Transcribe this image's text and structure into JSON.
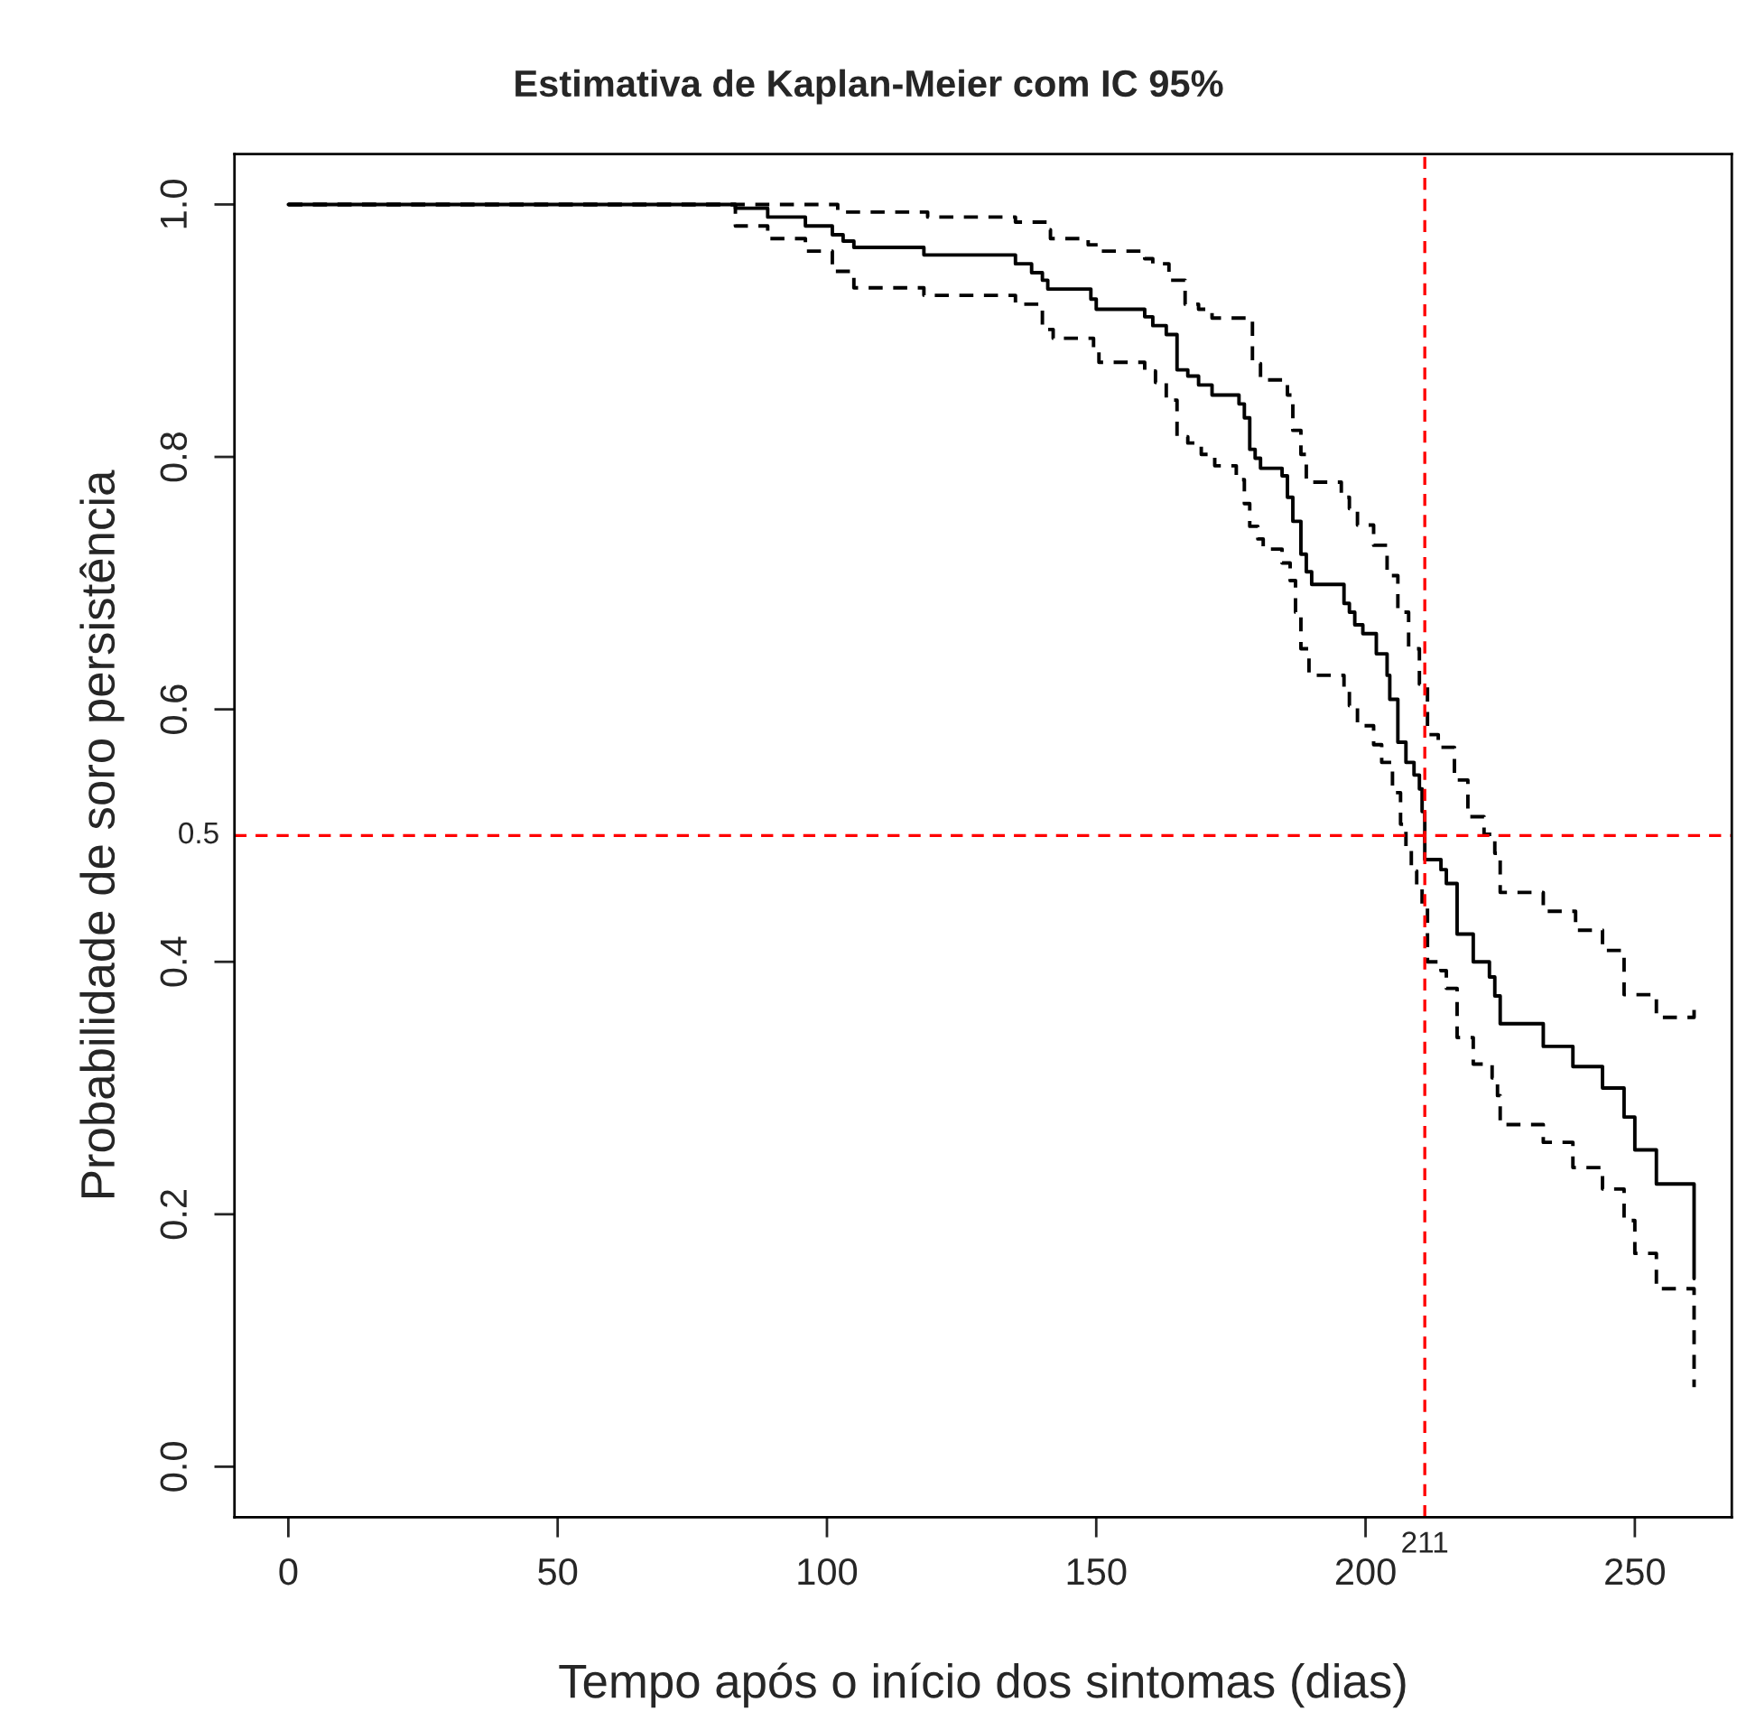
{
  "chart_data": {
    "type": "step",
    "title": "Estimativa de Kaplan-Meier com IC 95%",
    "xlabel": "Tempo após o início dos sintomas (dias)",
    "ylabel": "Probabilidade de soro persistência",
    "xlim": [
      -10,
      268
    ],
    "ylim": [
      -0.04,
      1.04
    ],
    "xticks": [
      0,
      50,
      100,
      150,
      200,
      250
    ],
    "yticks": [
      {
        "value": 0,
        "label": "0.0"
      },
      {
        "value": 0.2,
        "label": "0.2"
      },
      {
        "value": 0.4,
        "label": "0.4"
      },
      {
        "value": 0.6,
        "label": "0.6"
      },
      {
        "value": 0.8,
        "label": "0.8"
      },
      {
        "value": 1,
        "label": "1.0"
      }
    ],
    "grid": false,
    "legend": false,
    "marker": "none",
    "series": [
      {
        "color": "#000000",
        "line_style": "solid",
        "x": [
          0,
          83,
          89,
          96,
          101,
          103,
          105,
          118,
          135,
          138,
          140,
          141,
          149,
          150,
          159,
          160.5,
          163,
          165,
          167,
          169,
          171.5,
          176.5,
          177.5,
          178.5,
          179.5,
          180.5,
          184.5,
          185.5,
          186.5,
          188,
          189,
          190,
          196,
          197,
          198,
          199.5,
          202,
          204,
          204.5,
          206,
          207.5,
          209,
          210,
          210.5,
          211,
          214,
          215,
          217,
          220,
          223,
          224,
          225,
          233,
          238.5,
          244,
          248,
          250,
          254,
          261
        ],
        "values": [
          1.0,
          0.997,
          0.99,
          0.983,
          0.976,
          0.971,
          0.966,
          0.96,
          0.953,
          0.946,
          0.94,
          0.933,
          0.925,
          0.917,
          0.911,
          0.904,
          0.897,
          0.869,
          0.864,
          0.857,
          0.849,
          0.842,
          0.831,
          0.806,
          0.799,
          0.791,
          0.785,
          0.768,
          0.749,
          0.723,
          0.709,
          0.699,
          0.684,
          0.677,
          0.667,
          0.66,
          0.644,
          0.627,
          0.608,
          0.574,
          0.558,
          0.548,
          0.537,
          0.519,
          0.481,
          0.473,
          0.462,
          0.422,
          0.4,
          0.388,
          0.373,
          0.351,
          0.333,
          0.317,
          0.3,
          0.277,
          0.251,
          0.224,
          0.149
        ]
      },
      {
        "color": "#000000",
        "line_style": "dashed",
        "x": [
          0,
          102,
          118.7,
          135,
          141,
          141.5,
          148.5,
          150.5,
          159,
          160.5,
          163.5,
          166.5,
          169,
          171.5,
          179,
          180.5,
          185.5,
          186.5,
          188,
          189,
          195.5,
          197,
          198.5,
          201.5,
          204,
          206,
          208,
          210,
          211.5,
          213.5,
          216.5,
          219,
          222,
          224,
          225,
          233,
          239,
          244,
          248,
          254,
          261
        ],
        "values": [
          1.0,
          0.994,
          0.99,
          0.986,
          0.98,
          0.973,
          0.968,
          0.963,
          0.957,
          0.953,
          0.94,
          0.921,
          0.917,
          0.91,
          0.874,
          0.861,
          0.849,
          0.821,
          0.802,
          0.78,
          0.768,
          0.759,
          0.746,
          0.73,
          0.706,
          0.677,
          0.648,
          0.62,
          0.58,
          0.57,
          0.544,
          0.515,
          0.501,
          0.486,
          0.455,
          0.44,
          0.425,
          0.409,
          0.374,
          0.356,
          0.366
        ]
      },
      {
        "color": "#000000",
        "line_style": "dashed",
        "x": [
          0,
          83,
          89,
          96,
          101,
          105,
          118,
          135,
          140,
          142,
          149.5,
          150.5,
          159,
          161,
          163,
          165,
          167,
          169.5,
          172,
          176,
          177.5,
          178.5,
          180,
          181,
          184.5,
          186,
          187,
          188,
          189.5,
          196,
          197,
          198.5,
          201.5,
          203,
          205,
          206.5,
          207.5,
          208.5,
          209.5,
          210.5,
          211.5,
          214,
          215,
          217,
          220,
          223.5,
          224.5,
          225,
          233,
          238.5,
          244,
          248,
          250,
          254,
          261
        ],
        "values": [
          1.0,
          0.983,
          0.973,
          0.963,
          0.947,
          0.934,
          0.928,
          0.921,
          0.901,
          0.894,
          0.884,
          0.875,
          0.868,
          0.859,
          0.845,
          0.816,
          0.811,
          0.802,
          0.793,
          0.782,
          0.763,
          0.745,
          0.735,
          0.727,
          0.716,
          0.702,
          0.677,
          0.648,
          0.627,
          0.617,
          0.603,
          0.587,
          0.572,
          0.558,
          0.534,
          0.509,
          0.491,
          0.472,
          0.458,
          0.443,
          0.4,
          0.393,
          0.379,
          0.34,
          0.319,
          0.308,
          0.294,
          0.271,
          0.257,
          0.237,
          0.22,
          0.195,
          0.169,
          0.141,
          0.063
        ]
      }
    ],
    "ref_lines": [
      {
        "axis": "x",
        "value": 211,
        "label": "211",
        "color": "#ff0000",
        "line_style": "dashed"
      },
      {
        "axis": "y",
        "value": 0.5,
        "label": "0.5",
        "color": "#ff0000",
        "line_style": "dashed"
      }
    ]
  }
}
